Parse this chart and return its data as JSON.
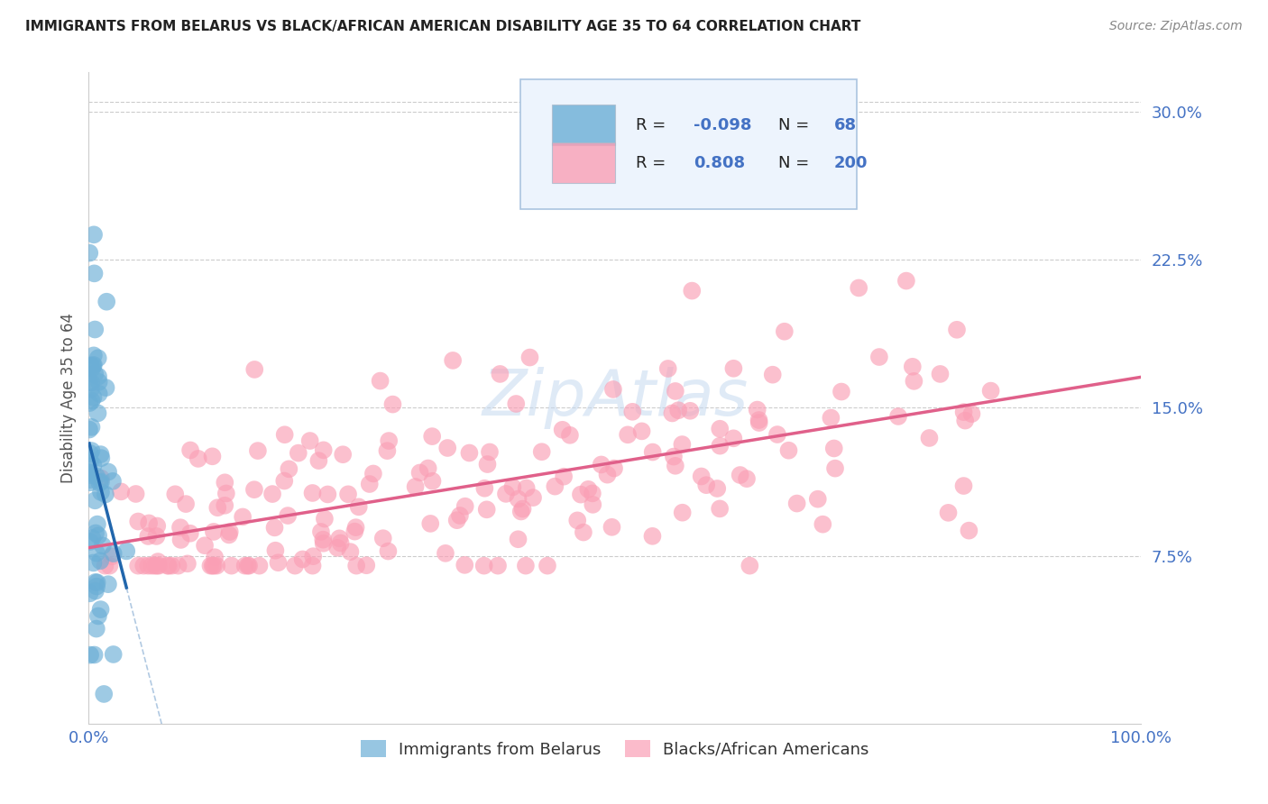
{
  "title": "IMMIGRANTS FROM BELARUS VS BLACK/AFRICAN AMERICAN DISABILITY AGE 35 TO 64 CORRELATION CHART",
  "source": "Source: ZipAtlas.com",
  "ylabel": "Disability Age 35 to 64",
  "ytick_labels": [
    "7.5%",
    "15.0%",
    "22.5%",
    "30.0%"
  ],
  "ytick_values": [
    0.075,
    0.15,
    0.225,
    0.3
  ],
  "xlim": [
    0.0,
    1.0
  ],
  "ylim": [
    -0.01,
    0.32
  ],
  "blue_R": -0.098,
  "blue_N": 68,
  "pink_R": 0.808,
  "pink_N": 200,
  "blue_color": "#6baed6",
  "pink_color": "#fa9fb5",
  "blue_line_color": "#2166ac",
  "pink_line_color": "#e0608a",
  "legend_box_facecolor": "#edf4fd",
  "legend_box_edgecolor": "#aac4e0",
  "title_color": "#222222",
  "axis_label_color": "#555555",
  "tick_color": "#4472c4",
  "grid_color": "#cccccc",
  "watermark_color": "#c5d9f0",
  "r_value_color": "#4472c4",
  "n_value_color": "#4472c4",
  "label_color": "#333333"
}
